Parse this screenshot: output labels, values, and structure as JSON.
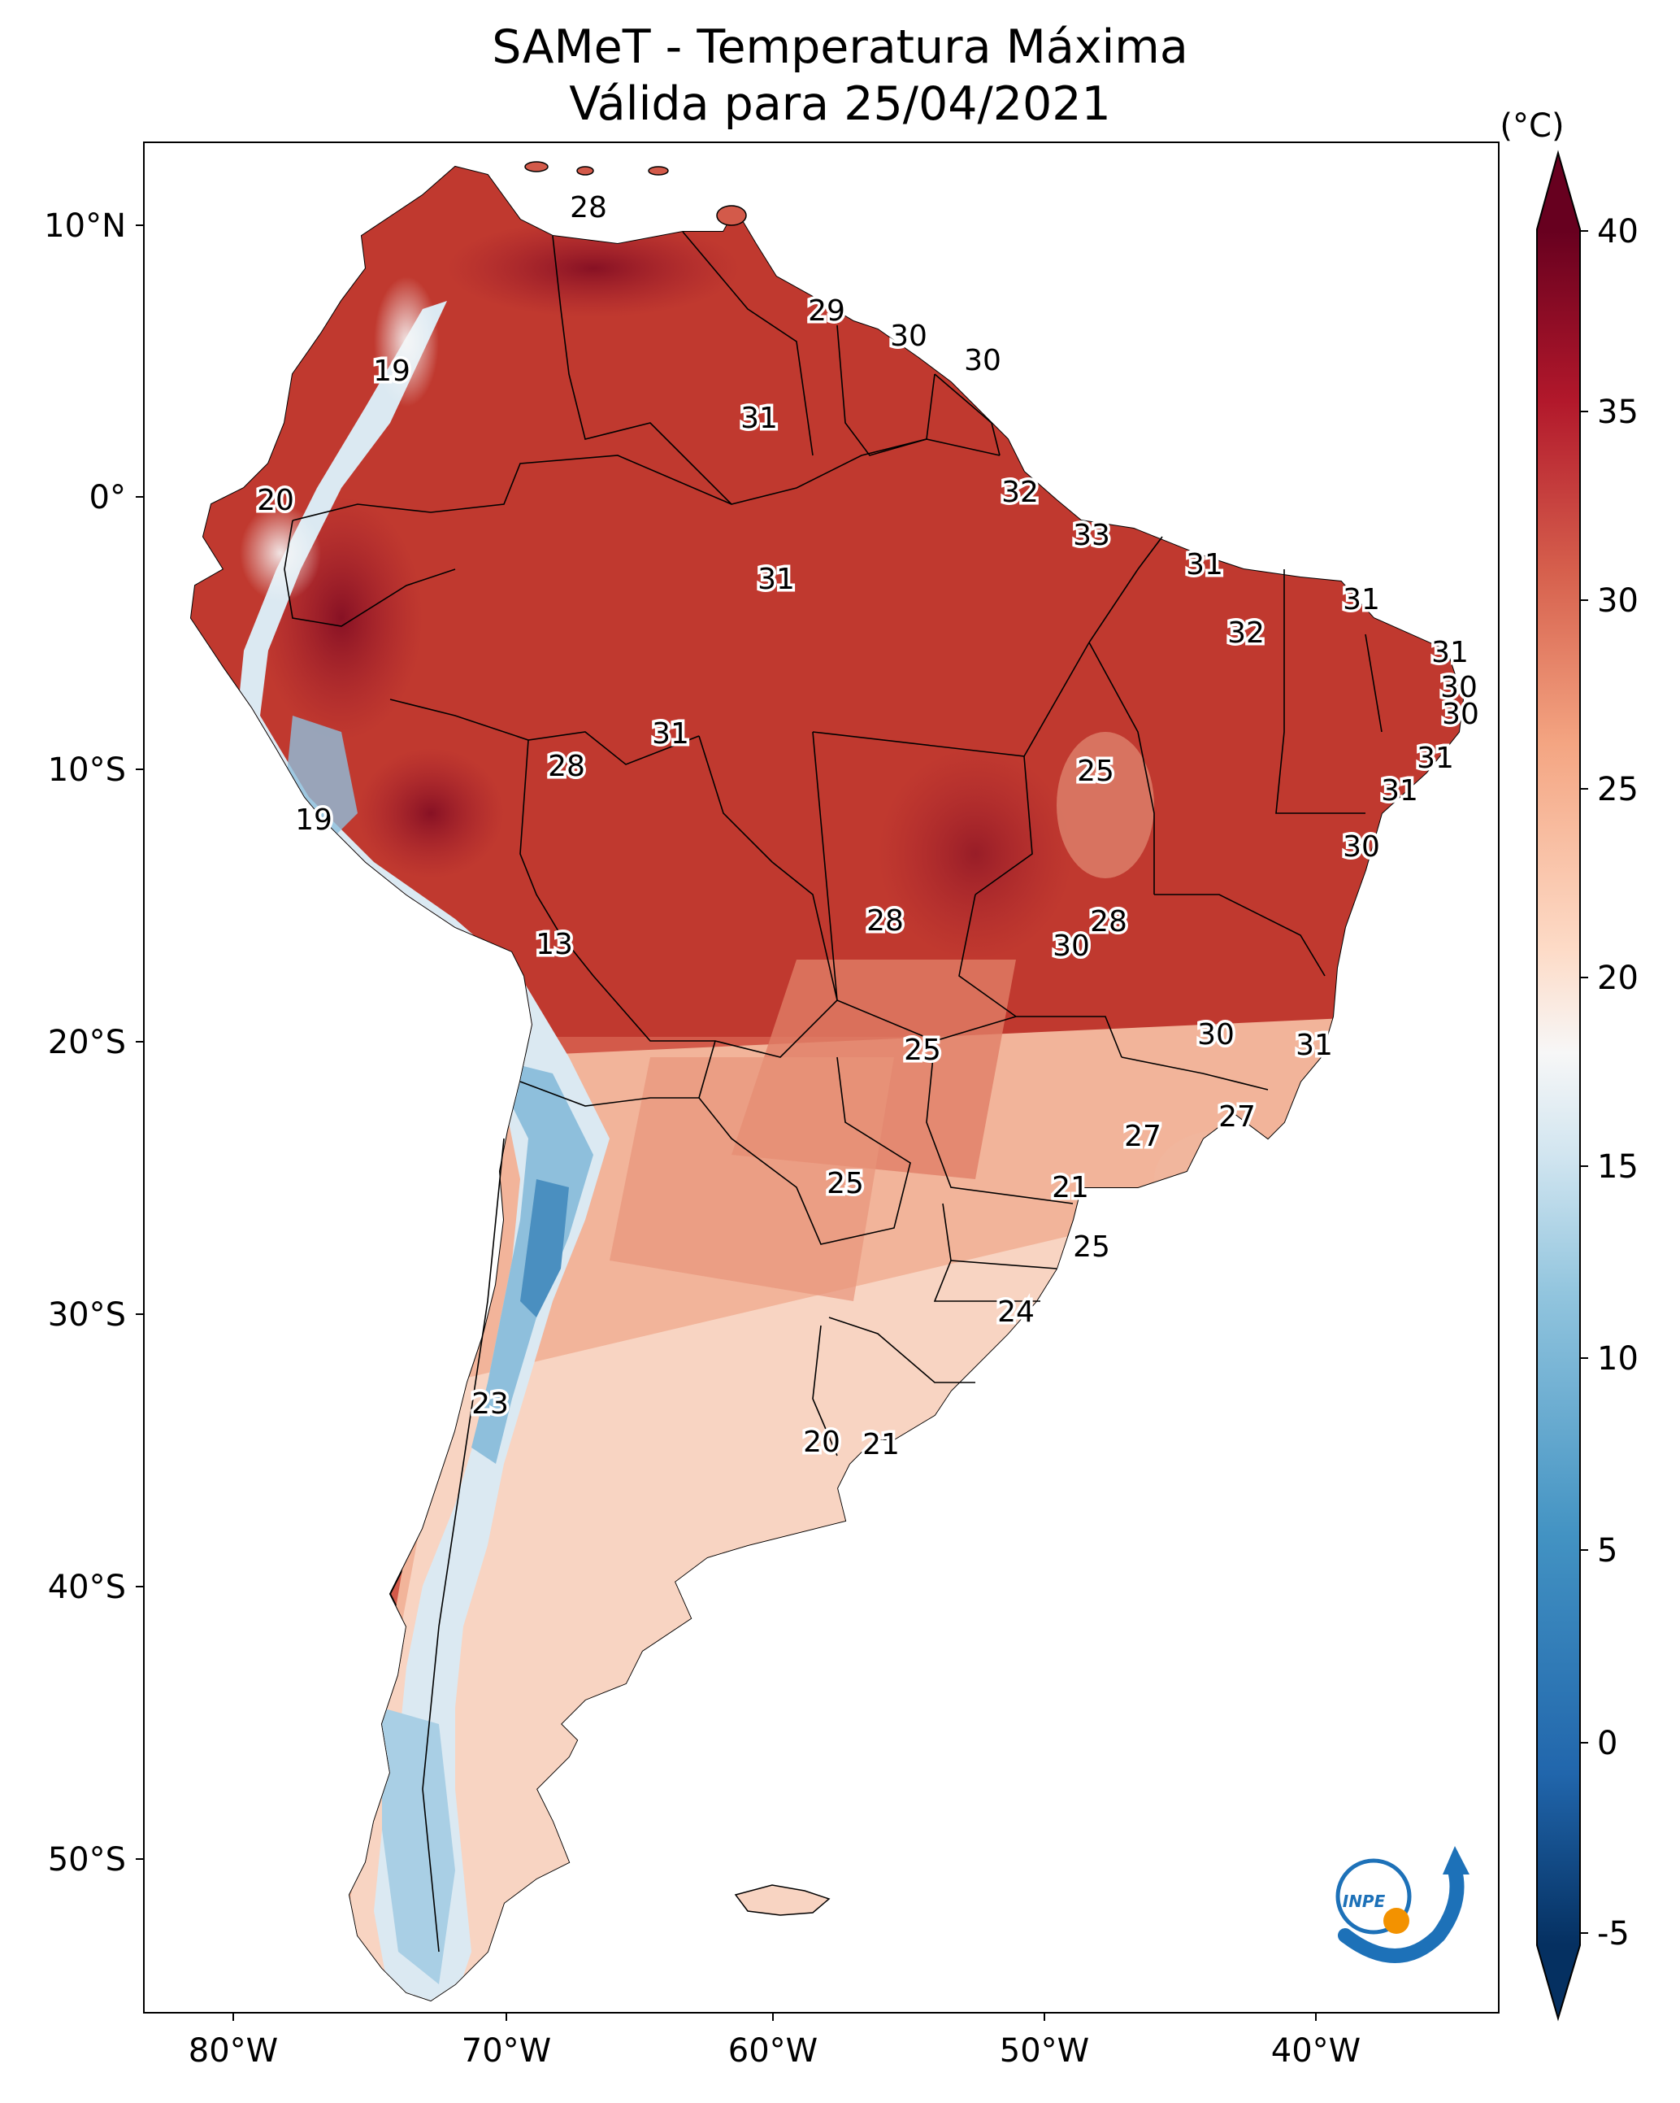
{
  "title": {
    "line1": "SAMeT - Temperatura Máxima",
    "line2": "Válida para 25/04/2021"
  },
  "axes": {
    "lat_ticks": [
      "10°N",
      "0°",
      "10°S",
      "20°S",
      "30°S",
      "40°S",
      "50°S"
    ],
    "lon_ticks": [
      "80°W",
      "70°W",
      "60°W",
      "50°W",
      "40°W"
    ]
  },
  "colorbar": {
    "unit": "(°C)",
    "ticks": [
      "40",
      "35",
      "30",
      "25",
      "20",
      "15",
      "10",
      "5",
      "0",
      "-5"
    ],
    "min": -7,
    "max": 40,
    "colors": {
      "dark_red": "#67001f",
      "red": "#b2182b",
      "light_red": "#d6604d",
      "salmon": "#f4a582",
      "peach": "#fddbc7",
      "white": "#f7f7f7",
      "light_blue": "#d1e5f0",
      "sky": "#92c5de",
      "blue": "#4393c3",
      "mid_blue": "#2166ac",
      "dark_blue": "#053061"
    }
  },
  "contour_labels": [
    "28",
    "29",
    "30",
    "30",
    "19",
    "31",
    "20",
    "32",
    "33",
    "31",
    "31",
    "31",
    "32",
    "31",
    "30",
    "30",
    "31",
    "28",
    "31",
    "25",
    "31",
    "19",
    "30",
    "13",
    "28",
    "28",
    "30",
    "25",
    "30",
    "31",
    "27",
    "27",
    "25",
    "21",
    "25",
    "24",
    "23",
    "20",
    "21"
  ],
  "logo": {
    "text": "INPE",
    "accent": "#f39200",
    "blue": "#1d71b8"
  }
}
